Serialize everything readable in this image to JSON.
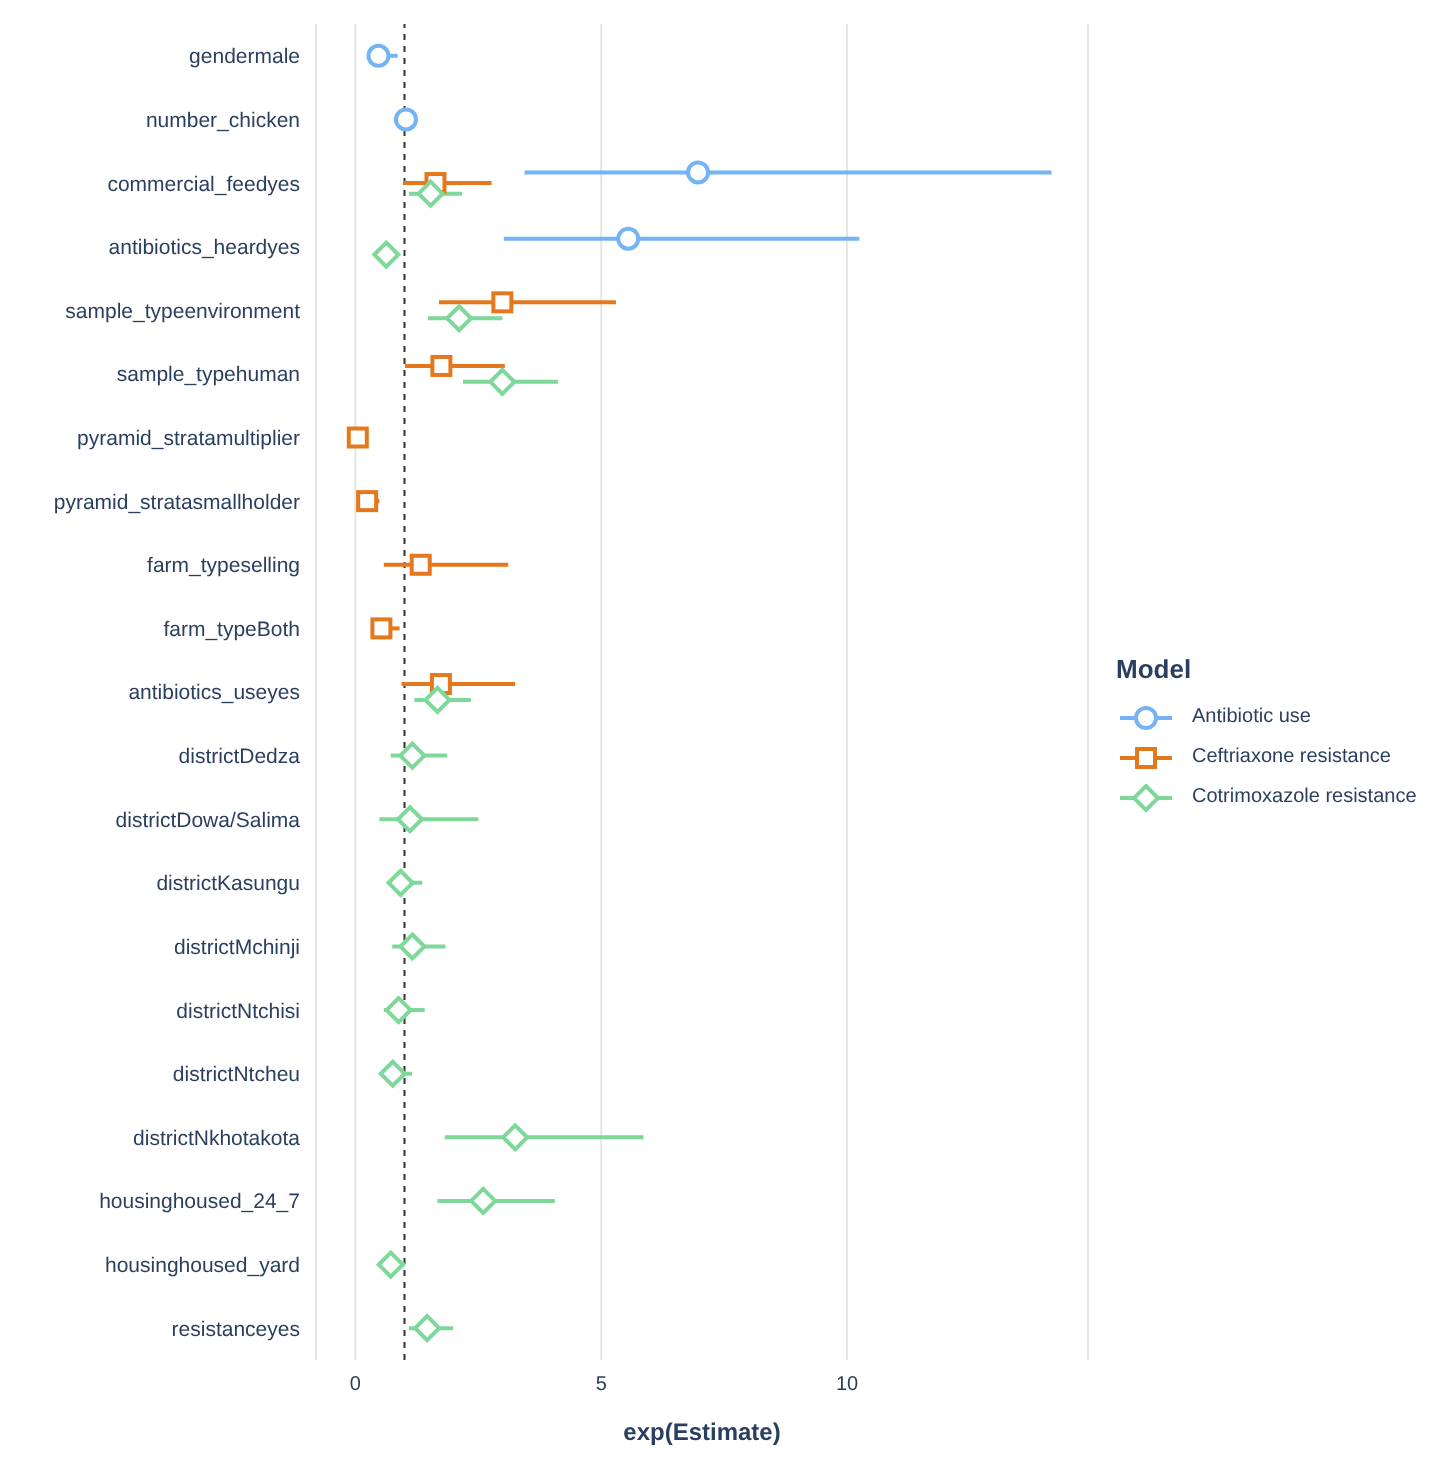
{
  "chart_data": {
    "type": "scatter",
    "orientation": "horizontal",
    "xlabel": "exp(Estimate)",
    "legend_title": "Model",
    "legend": "right",
    "grid": "x",
    "categories": [
      "gendermale",
      "number_chicken",
      "commercial_feedyes",
      "antibiotics_heardyes",
      "sample_typeenvironment",
      "sample_typehuman",
      "pyramid_stratamultiplier",
      "pyramid_stratasmallholder",
      "farm_typeselling",
      "farm_typeBoth",
      "antibiotics_useyes",
      "districtDedza",
      "districtDowa/Salima",
      "districtKasungu",
      "districtMchinji",
      "districtNtchisi",
      "districtNtcheu",
      "districtNkhotakota",
      "housinghoused_24_7",
      "housinghoused_yard",
      "resistanceyes"
    ],
    "xlim": [
      -0.8,
      14.9
    ],
    "xticks": [
      0,
      5,
      10
    ],
    "ref_lines": [
      {
        "axis": "x",
        "value": 1,
        "line_style": "dashed",
        "color": "#333333"
      }
    ],
    "series": [
      {
        "name": "Antibiotic use",
        "color": "#74b3f4",
        "marker": "circle",
        "values": [
          0.47,
          1.03,
          6.97,
          5.55,
          null,
          null,
          null,
          null,
          null,
          null,
          null,
          null,
          null,
          null,
          null,
          null,
          null,
          null,
          null,
          null,
          null
        ],
        "errors": [
          [
            0.29,
            0.86
          ],
          [
            1.0,
            1.06
          ],
          [
            3.44,
            14.16
          ],
          [
            3.02,
            10.25
          ],
          null,
          null,
          null,
          null,
          null,
          null,
          null,
          null,
          null,
          null,
          null,
          null,
          null,
          null,
          null,
          null,
          null
        ]
      },
      {
        "name": "Ceftriaxone resistance",
        "color": "#e5781c",
        "marker": "square",
        "values": [
          null,
          null,
          1.63,
          null,
          2.99,
          1.75,
          0.05,
          0.24,
          1.33,
          0.53,
          1.74,
          null,
          null,
          null,
          null,
          null,
          null,
          null,
          null,
          null,
          null
        ],
        "errors": [
          null,
          null,
          [
            0.97,
            2.77
          ],
          null,
          [
            1.7,
            5.3
          ],
          [
            1.01,
            3.04
          ],
          [
            0.03,
            0.08
          ],
          [
            0.12,
            0.49
          ],
          [
            0.58,
            3.11
          ],
          [
            0.34,
            0.9
          ],
          [
            0.94,
            3.25
          ],
          null,
          null,
          null,
          null,
          null,
          null,
          null,
          null,
          null,
          null
        ]
      },
      {
        "name": "Cotrimoxazole resistance",
        "color": "#7dd899",
        "marker": "diamond",
        "values": [
          null,
          null,
          1.53,
          0.63,
          2.11,
          2.99,
          null,
          null,
          null,
          null,
          1.67,
          1.16,
          1.11,
          0.92,
          1.16,
          0.88,
          0.76,
          3.25,
          2.6,
          0.72,
          1.46
        ],
        "errors": [
          null,
          null,
          [
            1.09,
            2.17
          ],
          [
            0.51,
            0.86
          ],
          [
            1.48,
            2.99
          ],
          [
            2.19,
            4.12
          ],
          null,
          null,
          null,
          null,
          [
            1.2,
            2.35
          ],
          [
            0.72,
            1.87
          ],
          [
            0.49,
            2.5
          ],
          [
            0.66,
            1.36
          ],
          [
            0.75,
            1.83
          ],
          [
            0.58,
            1.41
          ],
          [
            0.53,
            1.15
          ],
          [
            1.82,
            5.86
          ],
          [
            1.67,
            4.06
          ],
          [
            0.55,
            1.01
          ],
          [
            1.09,
            1.99
          ]
        ]
      }
    ]
  }
}
